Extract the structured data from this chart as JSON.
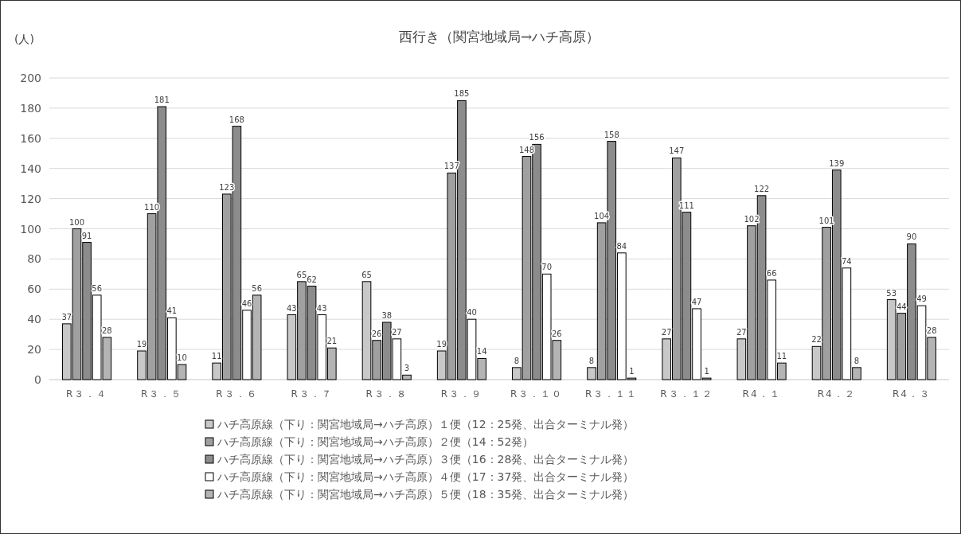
{
  "chart_data": {
    "type": "bar",
    "title": "西行き（関宮地域局→ハチ高原）",
    "ylabel": "(人)",
    "categories": [
      "R３．４",
      "R３．５",
      "R３．６",
      "R３．７",
      "R３．８",
      "R３．９",
      "R３．１０",
      "R３．１１",
      "R３．１２",
      "R4．１",
      "R4．２",
      "R4．３"
    ],
    "series": [
      {
        "name": "ハチ高原線（下り：関宮地域局→ハチ高原）１便（12：25発、出合ターミナル発）",
        "color": "#c8c8c8",
        "values": [
          37,
          19,
          11,
          43,
          65,
          19,
          8,
          8,
          27,
          27,
          22,
          53
        ]
      },
      {
        "name": "ハチ高原線（下り：関宮地域局→ハチ高原）２便（14：52発）",
        "color": "#a0a0a0",
        "values": [
          100,
          110,
          123,
          65,
          26,
          137,
          148,
          104,
          147,
          102,
          101,
          44
        ]
      },
      {
        "name": "ハチ高原線（下り：関宮地域局→ハチ高原）３便（16：28発、出合ターミナル発）",
        "color": "#8c8c8c",
        "values": [
          91,
          181,
          168,
          62,
          38,
          185,
          156,
          158,
          111,
          122,
          139,
          90
        ]
      },
      {
        "name": "ハチ高原線（下り：関宮地域局→ハチ高原）４便（17：37発、出合ターミナル発）",
        "color": "#ffffff",
        "values": [
          56,
          41,
          46,
          43,
          27,
          40,
          70,
          84,
          47,
          66,
          74,
          49
        ]
      },
      {
        "name": "ハチ高原線（下り：関宮地域局→ハチ高原）５便（18：35発、出合ターミナル発）",
        "color": "#b4b4b4",
        "values": [
          28,
          10,
          56,
          21,
          3,
          14,
          26,
          1,
          1,
          11,
          8,
          28
        ]
      }
    ],
    "ylim": [
      0,
      200
    ],
    "yticks": [
      0,
      20,
      40,
      60,
      80,
      100,
      120,
      140,
      160,
      180,
      200
    ],
    "grid": "y",
    "legend": "bottom",
    "data_labels": true
  }
}
